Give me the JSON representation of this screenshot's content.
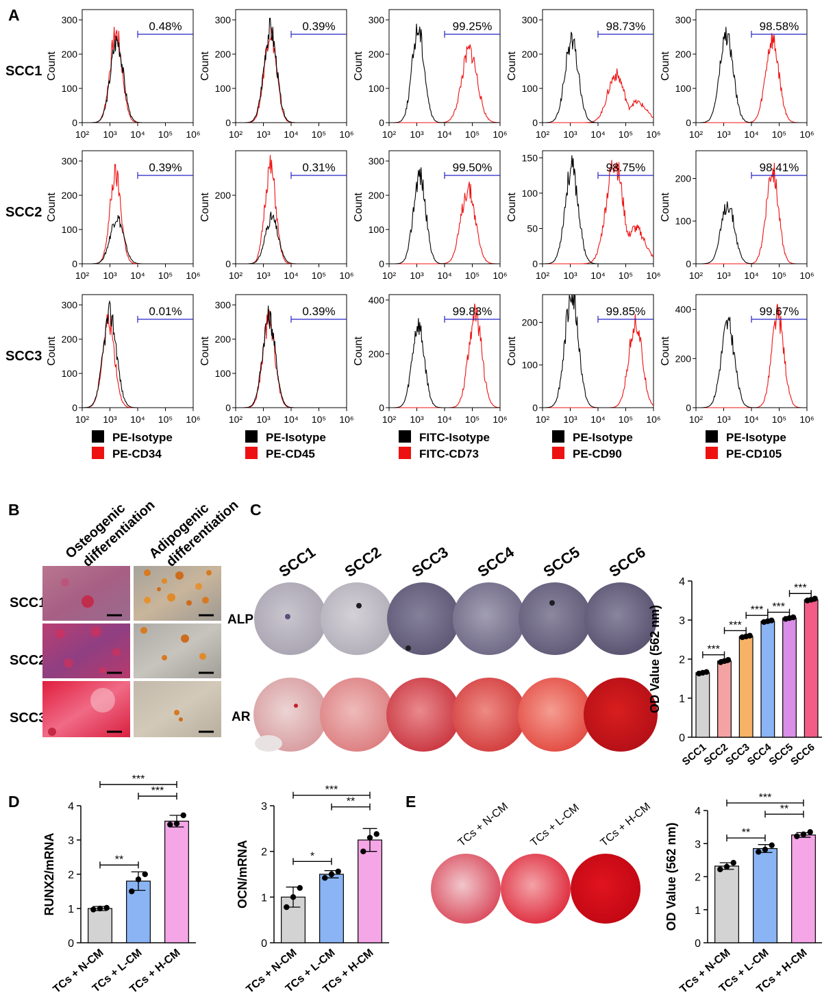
{
  "figure": {
    "panel_letters": [
      "A",
      "B",
      "C",
      "D",
      "E"
    ]
  },
  "colors": {
    "isotype": "#000000",
    "marker": "#ee1111",
    "gate": "#2323c8",
    "gray_bar": "#d3d3d3",
    "salmon_bar": "#f4a3a3",
    "orange_bar": "#f6b266",
    "blue_bar": "#8ab4f3",
    "violet_bar": "#d98ee8",
    "pink_bar": "#f25c87",
    "light_pink_bar": "#f4a6e6"
  },
  "panel_a": {
    "row_labels": [
      "SCC1",
      "SCC2",
      "SCC3"
    ],
    "ylabel": "Count",
    "x_ticks": [
      "10²",
      "10³",
      "10⁴",
      "10⁵",
      "10⁶"
    ],
    "x_log_range": [
      2,
      6
    ],
    "gate_log_range": [
      4,
      6
    ],
    "legends": [
      {
        "isotype": "PE-Isotype",
        "marker": "PE-CD34"
      },
      {
        "isotype": "PE-Isotype",
        "marker": "PE-CD45"
      },
      {
        "isotype": "FITC-Isotype",
        "marker": "FITC-CD73"
      },
      {
        "isotype": "PE-Isotype",
        "marker": "PE-CD90"
      },
      {
        "isotype": "PE-Isotype",
        "marker": "PE-CD105"
      }
    ],
    "y_ticks_by_row": [
      [
        [
          0,
          100,
          200,
          300
        ],
        [
          0,
          100,
          200,
          300
        ],
        [
          0,
          100,
          200,
          300
        ],
        [
          0,
          100,
          200,
          300
        ],
        [
          0,
          100,
          200,
          300
        ]
      ],
      [
        [
          0,
          100,
          200,
          300
        ],
        [
          0,
          200
        ],
        [
          0,
          100,
          200,
          300
        ],
        [
          0,
          50,
          100,
          150
        ],
        [
          0,
          100,
          200
        ]
      ],
      [
        [
          0,
          100,
          200,
          300
        ],
        [
          0,
          100,
          200,
          300
        ],
        [
          0,
          200,
          400
        ],
        [
          0,
          100,
          200
        ],
        [
          0,
          200,
          400
        ]
      ]
    ],
    "y_max_by_row": [
      [
        330,
        330,
        330,
        330,
        330
      ],
      [
        330,
        330,
        330,
        160,
        265
      ],
      [
        330,
        330,
        420,
        265,
        460
      ]
    ],
    "gate_percent": [
      [
        "0.48%",
        "0.39%",
        "99.25%",
        "98.73%",
        "98.58%"
      ],
      [
        "0.39%",
        "0.31%",
        "99.50%",
        "98.75%",
        "98.41%"
      ],
      [
        "0.01%",
        "0.39%",
        "99.83%",
        "99.85%",
        "99.67%"
      ]
    ],
    "peaks": [
      [
        {
          "iso_mode": 3.25,
          "iso_height": 240,
          "iso_width": 0.23,
          "mk_mode": 3.22,
          "mk_height": 260,
          "mk_width": 0.22,
          "mk_tail": 0
        },
        {
          "iso_mode": 3.25,
          "iso_height": 270,
          "iso_width": 0.23,
          "mk_mode": 3.25,
          "mk_height": 265,
          "mk_width": 0.22,
          "mk_tail": 0
        },
        {
          "iso_mode": 3.05,
          "iso_height": 275,
          "iso_width": 0.22,
          "mk_mode": 4.9,
          "mk_height": 210,
          "mk_width": 0.28,
          "mk_tail": 0
        },
        {
          "iso_mode": 3.05,
          "iso_height": 240,
          "iso_width": 0.24,
          "mk_mode": 4.65,
          "mk_height": 140,
          "mk_width": 0.3,
          "mk_tail": 60
        },
        {
          "iso_mode": 3.1,
          "iso_height": 255,
          "iso_width": 0.24,
          "mk_mode": 4.75,
          "mk_height": 240,
          "mk_width": 0.24,
          "mk_tail": 0
        }
      ],
      [
        {
          "iso_mode": 3.25,
          "iso_height": 135,
          "iso_width": 0.24,
          "mk_mode": 3.2,
          "mk_height": 260,
          "mk_width": 0.2,
          "mk_tail": 0
        },
        {
          "iso_mode": 3.3,
          "iso_height": 135,
          "iso_width": 0.23,
          "mk_mode": 3.25,
          "mk_height": 280,
          "mk_width": 0.2,
          "mk_tail": 0
        },
        {
          "iso_mode": 3.1,
          "iso_height": 260,
          "iso_width": 0.22,
          "mk_mode": 4.85,
          "mk_height": 220,
          "mk_width": 0.26,
          "mk_tail": 0
        },
        {
          "iso_mode": 3.05,
          "iso_height": 135,
          "iso_width": 0.24,
          "mk_mode": 4.6,
          "mk_height": 145,
          "mk_width": 0.3,
          "mk_tail": 50
        },
        {
          "iso_mode": 3.15,
          "iso_height": 140,
          "iso_width": 0.24,
          "mk_mode": 4.75,
          "mk_height": 220,
          "mk_width": 0.22,
          "mk_tail": 0
        }
      ],
      [
        {
          "iso_mode": 3.0,
          "iso_height": 275,
          "iso_width": 0.24,
          "mk_mode": 2.95,
          "mk_height": 255,
          "mk_width": 0.22,
          "mk_tail": 0
        },
        {
          "iso_mode": 3.2,
          "iso_height": 265,
          "iso_width": 0.23,
          "mk_mode": 3.2,
          "mk_height": 255,
          "mk_width": 0.22,
          "mk_tail": 0
        },
        {
          "iso_mode": 3.05,
          "iso_height": 305,
          "iso_width": 0.22,
          "mk_mode": 5.1,
          "mk_height": 345,
          "mk_width": 0.24,
          "mk_tail": 0
        },
        {
          "iso_mode": 3.05,
          "iso_height": 270,
          "iso_width": 0.24,
          "mk_mode": 5.35,
          "mk_height": 200,
          "mk_width": 0.24,
          "mk_tail": 0
        },
        {
          "iso_mode": 3.15,
          "iso_height": 340,
          "iso_width": 0.24,
          "mk_mode": 4.95,
          "mk_height": 375,
          "mk_width": 0.22,
          "mk_tail": 0
        }
      ]
    ]
  },
  "panel_b": {
    "column_headers": [
      [
        "Osteogenic",
        "differentiation"
      ],
      [
        "Adipogenic",
        "differentiation"
      ]
    ],
    "row_labels": [
      "SCC1",
      "SCC2",
      "SCC3"
    ]
  },
  "panel_c": {
    "column_labels": [
      "SCC1",
      "SCC2",
      "SCC3",
      "SCC4",
      "SCC5",
      "SCC6"
    ],
    "row_labels": [
      "ALP",
      "AR"
    ]
  },
  "panel_e": {
    "well_labels": [
      "TCs + N-CM",
      "TCs + L-CM",
      "TCs + H-CM"
    ]
  },
  "chart_data": [
    {
      "type": "bar",
      "panel": "C",
      "categories": [
        "SCC1",
        "SCC2",
        "SCC3",
        "SCC4",
        "SCC5",
        "SCC6"
      ],
      "values": [
        1.65,
        1.95,
        2.58,
        2.97,
        3.05,
        3.52
      ],
      "errors": [
        0.03,
        0.04,
        0.03,
        0.03,
        0.03,
        0.04
      ],
      "points": [
        [
          1.63,
          1.65,
          1.67
        ],
        [
          1.92,
          1.95,
          1.98
        ],
        [
          2.56,
          2.58,
          2.6
        ],
        [
          2.95,
          2.97,
          2.99
        ],
        [
          3.03,
          3.05,
          3.07
        ],
        [
          3.5,
          3.52,
          3.55
        ]
      ],
      "ylabel": "OD Value (562 nm)",
      "ylim": [
        0,
        4
      ],
      "yticks": [
        0,
        1,
        2,
        3,
        4
      ],
      "colors": [
        "#d3d3d3",
        "#f4a3a3",
        "#f6b266",
        "#8ab4f3",
        "#d98ee8",
        "#f25c87"
      ],
      "significance": [
        {
          "from": 0,
          "to": 1,
          "label": "***",
          "level": 1
        },
        {
          "from": 1,
          "to": 2,
          "label": "***",
          "level": 1
        },
        {
          "from": 2,
          "to": 3,
          "label": "***",
          "level": 1
        },
        {
          "from": 3,
          "to": 4,
          "label": "***",
          "level": 1
        },
        {
          "from": 4,
          "to": 5,
          "label": "***",
          "level": 1
        }
      ]
    },
    {
      "type": "bar",
      "panel": "D",
      "categories": [
        "TCs + N-CM",
        "TCs + L-CM",
        "TCs + H-CM"
      ],
      "values": [
        1.0,
        1.8,
        3.55
      ],
      "errors": [
        0.06,
        0.27,
        0.17
      ],
      "points": [
        [
          0.97,
          1.0,
          1.02
        ],
        [
          1.5,
          1.85,
          2.0
        ],
        [
          3.45,
          3.48,
          3.72
        ]
      ],
      "ylabel": "RUNX2/mRNA",
      "ylim": [
        0,
        4
      ],
      "yticks": [
        0,
        1,
        2,
        3,
        4
      ],
      "colors": [
        "#d3d3d3",
        "#8ab4f3",
        "#f4a6e6"
      ],
      "significance": [
        {
          "from": 0,
          "to": 1,
          "label": "**",
          "level": 1
        },
        {
          "from": 1,
          "to": 2,
          "label": "***",
          "level": 2
        },
        {
          "from": 0,
          "to": 2,
          "label": "***",
          "level": 3
        }
      ]
    },
    {
      "type": "bar",
      "panel": "D",
      "categories": [
        "TCs + N-CM",
        "TCs + L-CM",
        "TCs + H-CM"
      ],
      "values": [
        1.0,
        1.5,
        2.25
      ],
      "errors": [
        0.22,
        0.08,
        0.25
      ],
      "points": [
        [
          0.78,
          1.0,
          1.2
        ],
        [
          1.42,
          1.5,
          1.56
        ],
        [
          2.0,
          2.3,
          2.38
        ]
      ],
      "ylabel": "OCN/mRNA",
      "ylim": [
        0,
        3
      ],
      "yticks": [
        0,
        1,
        2,
        3
      ],
      "colors": [
        "#d3d3d3",
        "#8ab4f3",
        "#f4a6e6"
      ],
      "significance": [
        {
          "from": 0,
          "to": 1,
          "label": "*",
          "level": 1
        },
        {
          "from": 1,
          "to": 2,
          "label": "**",
          "level": 2
        },
        {
          "from": 0,
          "to": 2,
          "label": "***",
          "level": 3
        }
      ]
    },
    {
      "type": "bar",
      "panel": "E",
      "categories": [
        "TCs + N-CM",
        "TCs + L-CM",
        "TCs + H-CM"
      ],
      "values": [
        2.32,
        2.85,
        3.26
      ],
      "errors": [
        0.1,
        0.12,
        0.07
      ],
      "points": [
        [
          2.22,
          2.3,
          2.42
        ],
        [
          2.75,
          2.82,
          2.95
        ],
        [
          3.22,
          3.28,
          3.35
        ]
      ],
      "ylabel": "OD Value (562 nm)",
      "ylim": [
        0,
        4
      ],
      "yticks": [
        0,
        1,
        2,
        3,
        4
      ],
      "colors": [
        "#d3d3d3",
        "#8ab4f3",
        "#f4a6e6"
      ],
      "significance": [
        {
          "from": 0,
          "to": 1,
          "label": "**",
          "level": 1
        },
        {
          "from": 1,
          "to": 2,
          "label": "**",
          "level": 2
        },
        {
          "from": 0,
          "to": 2,
          "label": "***",
          "level": 3
        }
      ]
    }
  ]
}
